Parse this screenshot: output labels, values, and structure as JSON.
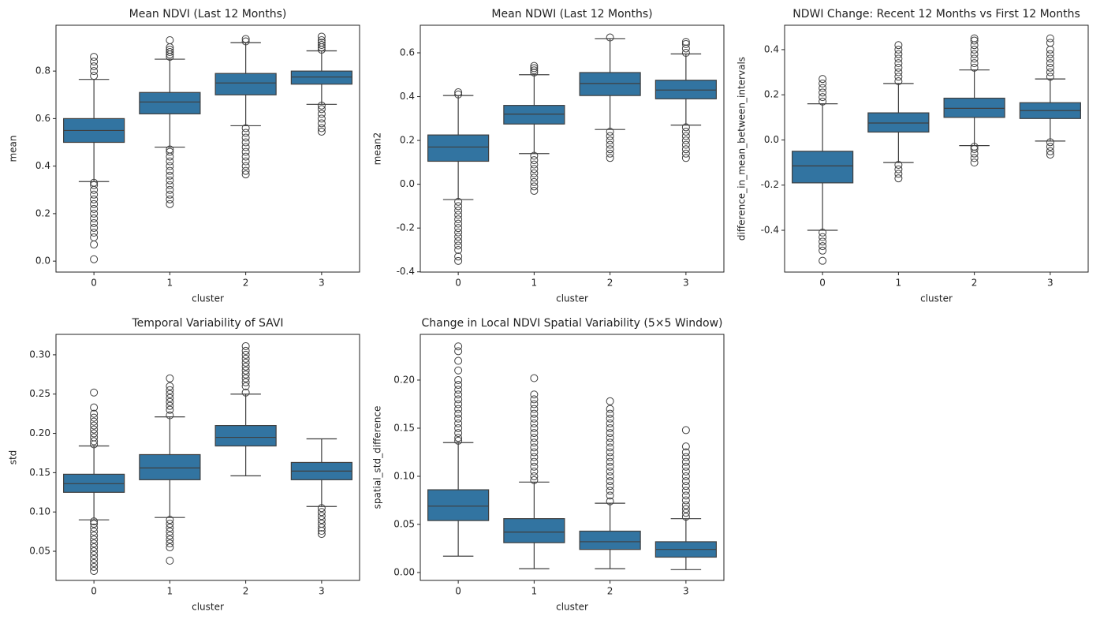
{
  "chart_data": [
    {
      "type": "box",
      "title": "Mean NDVI (Last 12 Months)",
      "x_label": "cluster",
      "y_label": "mean",
      "categories": [
        "0",
        "1",
        "2",
        "3"
      ],
      "color": "#3274a1",
      "ylim": [
        -0.046,
        0.993
      ],
      "yticks": [
        {
          "value": 0,
          "label": "0.0"
        },
        0.2,
        0.4,
        0.6,
        0.8
      ],
      "boxes": [
        {
          "q1": 0.5,
          "median": 0.55,
          "q3": 0.6,
          "whislo": 0.335,
          "whishi": 0.765,
          "outliers": [
            0.008,
            0.07,
            0.1,
            0.12,
            0.14,
            0.16,
            0.18,
            0.2,
            0.22,
            0.24,
            0.26,
            0.28,
            0.3,
            0.32,
            0.33,
            0.78,
            0.8,
            0.82,
            0.84,
            0.86
          ]
        },
        {
          "q1": 0.62,
          "median": 0.67,
          "q3": 0.71,
          "whislo": 0.48,
          "whishi": 0.85,
          "outliers": [
            0.24,
            0.26,
            0.28,
            0.3,
            0.32,
            0.34,
            0.36,
            0.38,
            0.4,
            0.42,
            0.44,
            0.46,
            0.47,
            0.86,
            0.87,
            0.88,
            0.89,
            0.9,
            0.93
          ]
        },
        {
          "q1": 0.7,
          "median": 0.75,
          "q3": 0.79,
          "whislo": 0.57,
          "whishi": 0.92,
          "outliers": [
            0.365,
            0.38,
            0.4,
            0.42,
            0.44,
            0.46,
            0.48,
            0.5,
            0.52,
            0.54,
            0.56,
            0.925,
            0.935
          ]
        },
        {
          "q1": 0.745,
          "median": 0.775,
          "q3": 0.8,
          "whislo": 0.66,
          "whishi": 0.885,
          "outliers": [
            0.545,
            0.56,
            0.58,
            0.6,
            0.62,
            0.64,
            0.655,
            0.89,
            0.9,
            0.91,
            0.92,
            0.93,
            0.945
          ]
        }
      ]
    },
    {
      "type": "box",
      "title": "Mean NDWI (Last 12 Months)",
      "x_label": "cluster",
      "y_label": "mean2",
      "categories": [
        "0",
        "1",
        "2",
        "3"
      ],
      "color": "#3274a1",
      "ylim": [
        -0.401,
        0.726
      ],
      "yticks": [
        -0.4,
        -0.2,
        {
          "value": 0,
          "label": "0.0"
        },
        0.2,
        0.4,
        0.6
      ],
      "boxes": [
        {
          "q1": 0.105,
          "median": 0.17,
          "q3": 0.225,
          "whislo": -0.07,
          "whishi": 0.405,
          "outliers": [
            -0.35,
            -0.33,
            -0.3,
            -0.28,
            -0.26,
            -0.24,
            -0.22,
            -0.2,
            -0.18,
            -0.16,
            -0.14,
            -0.12,
            -0.1,
            -0.08,
            0.41,
            0.42
          ]
        },
        {
          "q1": 0.275,
          "median": 0.32,
          "q3": 0.36,
          "whislo": 0.14,
          "whishi": 0.5,
          "outliers": [
            -0.03,
            -0.01,
            0.01,
            0.03,
            0.05,
            0.07,
            0.09,
            0.11,
            0.13,
            0.51,
            0.52,
            0.53,
            0.54
          ]
        },
        {
          "q1": 0.405,
          "median": 0.46,
          "q3": 0.51,
          "whislo": 0.25,
          "whishi": 0.665,
          "outliers": [
            0.12,
            0.14,
            0.16,
            0.18,
            0.2,
            0.22,
            0.24,
            0.67
          ]
        },
        {
          "q1": 0.39,
          "median": 0.43,
          "q3": 0.475,
          "whislo": 0.27,
          "whishi": 0.595,
          "outliers": [
            0.12,
            0.14,
            0.16,
            0.18,
            0.2,
            0.22,
            0.24,
            0.26,
            0.6,
            0.62,
            0.64,
            0.65
          ]
        }
      ]
    },
    {
      "type": "box",
      "title": "NDWI Change: Recent 12 Months vs First 12 Months",
      "x_label": "cluster",
      "y_label": "difference_in_mean_between_intervals",
      "categories": [
        "0",
        "1",
        "2",
        "3"
      ],
      "color": "#3274a1",
      "ylim": [
        -0.585,
        0.508
      ],
      "yticks": [
        -0.4,
        -0.2,
        {
          "value": 0,
          "label": "0.0"
        },
        0.2,
        0.4
      ],
      "boxes": [
        {
          "q1": -0.19,
          "median": -0.115,
          "q3": -0.05,
          "whislo": -0.4,
          "whishi": 0.16,
          "outliers": [
            -0.535,
            -0.49,
            -0.47,
            -0.45,
            -0.43,
            -0.41,
            0.17,
            0.19,
            0.21,
            0.23,
            0.25,
            0.27
          ]
        },
        {
          "q1": 0.035,
          "median": 0.075,
          "q3": 0.12,
          "whislo": -0.1,
          "whishi": 0.25,
          "outliers": [
            -0.17,
            -0.15,
            -0.13,
            -0.11,
            0.26,
            0.28,
            0.3,
            0.32,
            0.34,
            0.36,
            0.38,
            0.4,
            0.42
          ]
        },
        {
          "q1": 0.1,
          "median": 0.14,
          "q3": 0.185,
          "whislo": -0.025,
          "whishi": 0.31,
          "outliers": [
            -0.1,
            -0.08,
            -0.06,
            -0.04,
            -0.03,
            0.32,
            0.34,
            0.36,
            0.38,
            0.4,
            0.42,
            0.44,
            0.45
          ]
        },
        {
          "q1": 0.095,
          "median": 0.13,
          "q3": 0.165,
          "whislo": -0.005,
          "whishi": 0.27,
          "outliers": [
            -0.065,
            -0.05,
            -0.03,
            -0.01,
            0.28,
            0.3,
            0.32,
            0.34,
            0.36,
            0.38,
            0.4,
            0.43,
            0.45
          ]
        }
      ]
    },
    {
      "type": "box",
      "title": "Temporal Variability of SAVI",
      "x_label": "cluster",
      "y_label": "std",
      "categories": [
        "0",
        "1",
        "2",
        "3"
      ],
      "color": "#3274a1",
      "ylim": [
        0.0129,
        0.326
      ],
      "yticks": [
        0.05,
        {
          "value": 0.1,
          "label": "0.10"
        },
        0.15,
        {
          "value": 0.2,
          "label": "0.20"
        },
        0.25,
        {
          "value": 0.3,
          "label": "0.30"
        }
      ],
      "boxes": [
        {
          "q1": 0.125,
          "median": 0.136,
          "q3": 0.148,
          "whislo": 0.09,
          "whishi": 0.184,
          "outliers": [
            0.025,
            0.03,
            0.035,
            0.04,
            0.045,
            0.05,
            0.055,
            0.06,
            0.065,
            0.07,
            0.075,
            0.08,
            0.085,
            0.088,
            0.186,
            0.19,
            0.195,
            0.2,
            0.205,
            0.21,
            0.215,
            0.22,
            0.225,
            0.233,
            0.252
          ]
        },
        {
          "q1": 0.141,
          "median": 0.156,
          "q3": 0.173,
          "whislo": 0.093,
          "whishi": 0.221,
          "outliers": [
            0.038,
            0.055,
            0.06,
            0.065,
            0.07,
            0.075,
            0.08,
            0.085,
            0.09,
            0.223,
            0.23,
            0.235,
            0.24,
            0.245,
            0.25,
            0.255,
            0.26,
            0.27
          ]
        },
        {
          "q1": 0.184,
          "median": 0.195,
          "q3": 0.21,
          "whislo": 0.146,
          "whishi": 0.25,
          "outliers": [
            0.252,
            0.26,
            0.265,
            0.27,
            0.275,
            0.28,
            0.285,
            0.29,
            0.295,
            0.3,
            0.305,
            0.311
          ]
        },
        {
          "q1": 0.141,
          "median": 0.152,
          "q3": 0.163,
          "whislo": 0.107,
          "whishi": 0.193,
          "outliers": [
            0.072,
            0.076,
            0.08,
            0.085,
            0.09,
            0.095,
            0.1,
            0.105
          ]
        }
      ]
    },
    {
      "type": "box",
      "title": "Change in Local NDVI Spatial Variability (5×5 Window)",
      "x_label": "cluster",
      "y_label": "spatial_std_difference",
      "categories": [
        "0",
        "1",
        "2",
        "3"
      ],
      "color": "#3274a1",
      "ylim": [
        -0.0082,
        0.2475
      ],
      "yticks": [
        {
          "value": 0,
          "label": "0.00"
        },
        0.05,
        {
          "value": 0.1,
          "label": "0.10"
        },
        0.15,
        {
          "value": 0.2,
          "label": "0.20"
        }
      ],
      "boxes": [
        {
          "q1": 0.054,
          "median": 0.069,
          "q3": 0.086,
          "whislo": 0.017,
          "whishi": 0.135,
          "outliers": [
            0.137,
            0.14,
            0.145,
            0.15,
            0.155,
            0.16,
            0.165,
            0.17,
            0.175,
            0.18,
            0.185,
            0.19,
            0.195,
            0.2,
            0.21,
            0.22,
            0.23,
            0.235
          ]
        },
        {
          "q1": 0.031,
          "median": 0.042,
          "q3": 0.056,
          "whislo": 0.004,
          "whishi": 0.094,
          "outliers": [
            0.096,
            0.1,
            0.105,
            0.11,
            0.115,
            0.12,
            0.125,
            0.13,
            0.135,
            0.14,
            0.145,
            0.15,
            0.155,
            0.16,
            0.165,
            0.17,
            0.175,
            0.18,
            0.185,
            0.202
          ]
        },
        {
          "q1": 0.024,
          "median": 0.032,
          "q3": 0.043,
          "whislo": 0.004,
          "whishi": 0.072,
          "outliers": [
            0.074,
            0.08,
            0.085,
            0.09,
            0.095,
            0.1,
            0.105,
            0.11,
            0.115,
            0.12,
            0.125,
            0.13,
            0.135,
            0.14,
            0.145,
            0.15,
            0.155,
            0.16,
            0.165,
            0.17,
            0.178
          ]
        },
        {
          "q1": 0.016,
          "median": 0.024,
          "q3": 0.032,
          "whislo": 0.003,
          "whishi": 0.056,
          "outliers": [
            0.058,
            0.062,
            0.066,
            0.07,
            0.075,
            0.08,
            0.085,
            0.09,
            0.095,
            0.1,
            0.105,
            0.11,
            0.115,
            0.12,
            0.125,
            0.131,
            0.148
          ]
        }
      ]
    }
  ]
}
